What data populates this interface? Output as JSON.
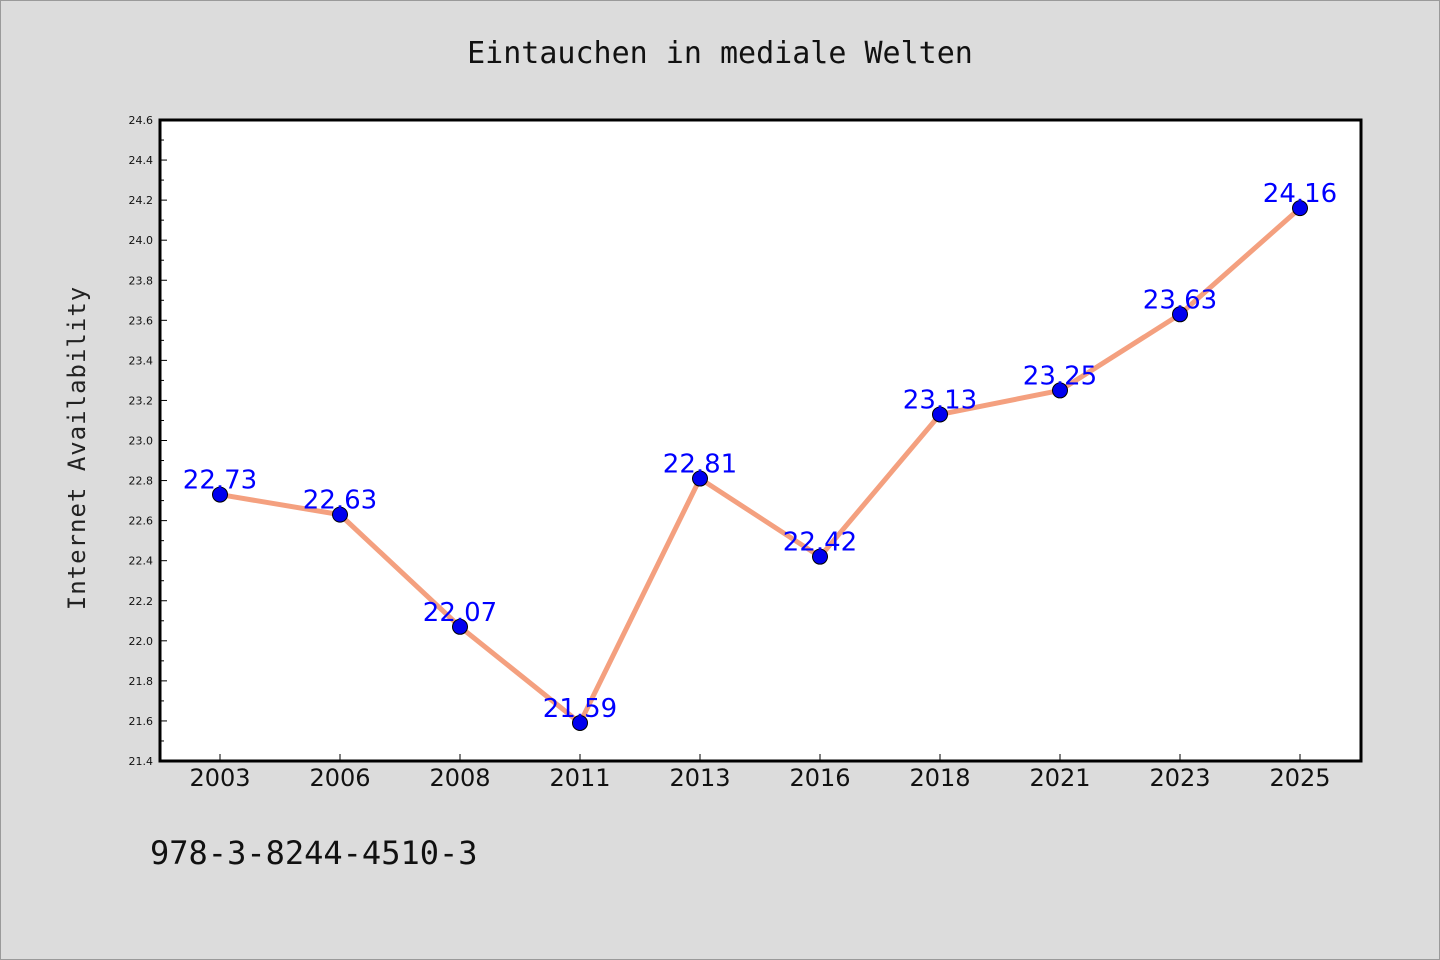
{
  "chart_data": {
    "type": "line",
    "title": "Eintauchen in mediale Welten",
    "ylabel": "Internet Availability",
    "xlabel": "",
    "categories": [
      "2003",
      "2006",
      "2008",
      "2011",
      "2013",
      "2016",
      "2018",
      "2021",
      "2023",
      "2025"
    ],
    "series": [
      {
        "values": [
          22.73,
          22.63,
          22.07,
          21.59,
          22.81,
          22.42,
          23.13,
          23.25,
          23.63,
          24.16
        ],
        "data_labels": [
          "22.73",
          "22.63",
          "22.07",
          "21.59",
          "22.81",
          "22.42",
          "23.13",
          "23.25",
          "23.63",
          "24.16"
        ],
        "line_color": "#f4a07f",
        "marker_color": "#0000ee"
      }
    ],
    "ylim": [
      21.4,
      24.6
    ],
    "yticks": [
      "21.4",
      "21.6",
      "21.8",
      "22.0",
      "22.2",
      "22.4",
      "22.6",
      "22.8",
      "23.0",
      "23.2",
      "23.4",
      "23.6",
      "23.8",
      "24.0",
      "24.2",
      "24.4",
      "24.6"
    ],
    "grid": false,
    "legend": "none",
    "label_color": "#0000ff",
    "background": "#dcdcdc",
    "plot_background": "#ffffff"
  },
  "isbn": "978-3-8244-4510-3"
}
